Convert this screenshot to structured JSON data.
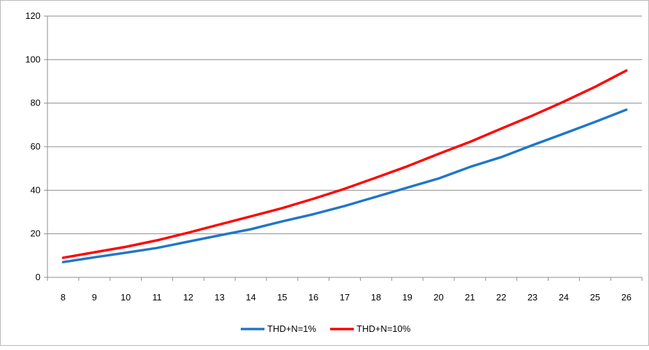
{
  "chart_data": {
    "type": "line",
    "categories": [
      "8",
      "9",
      "10",
      "11",
      "12",
      "13",
      "14",
      "15",
      "16",
      "17",
      "18",
      "19",
      "20",
      "21",
      "22",
      "23",
      "24",
      "25",
      "26"
    ],
    "ylim": [
      0,
      120
    ],
    "yticks": [
      0,
      20,
      40,
      60,
      80,
      100,
      120
    ],
    "grid": "horizontal",
    "legend_position": "bottom",
    "series": [
      {
        "name": "THD+N=1%",
        "color": "#1f77c8",
        "values": [
          7,
          9.2,
          11.3,
          13.5,
          16.4,
          19.3,
          22.1,
          25.7,
          29,
          32.8,
          37,
          41.2,
          45.4,
          50.7,
          55.2,
          60.7,
          66,
          71.4,
          77
        ]
      },
      {
        "name": "THD+N=10%",
        "color": "#ff0000",
        "values": [
          9,
          11.5,
          14,
          17,
          20.5,
          24.3,
          28,
          31.8,
          36.1,
          40.7,
          45.8,
          51,
          56.7,
          62.2,
          68.3,
          74.3,
          80.7,
          87.5,
          95
        ]
      }
    ]
  }
}
